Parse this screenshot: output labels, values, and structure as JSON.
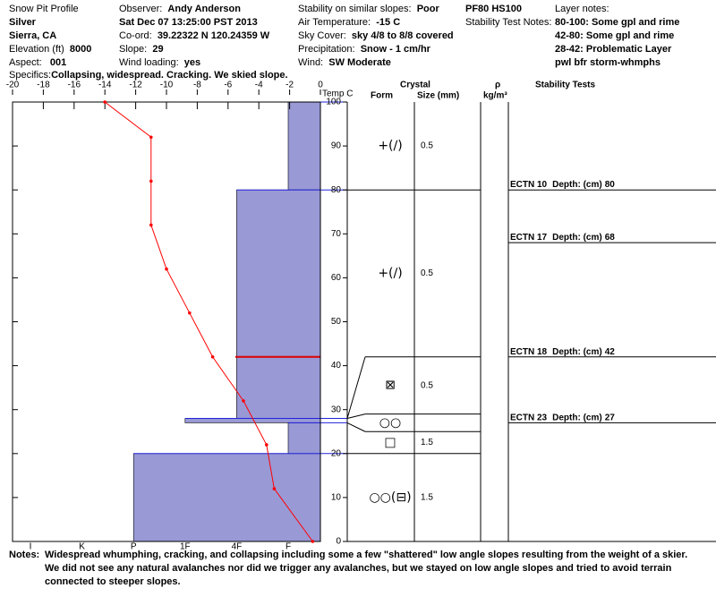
{
  "header": {
    "title": "Snow Pit Profile",
    "location": "Silver",
    "region": "Sierra, CA",
    "elevation": {
      "label": "Elevation (ft)",
      "value": 8000
    },
    "aspect": {
      "label": "Aspect:",
      "value": "001"
    },
    "observer": {
      "label": "Observer:",
      "value": "Andy Anderson"
    },
    "date": "Sat Dec 07 13:25:00 PST 2013",
    "coord": {
      "label": "Co-ord:",
      "value": "39.22322 N 120.24359 W"
    },
    "slope": {
      "label": "Slope:",
      "value": 29
    },
    "wind_loading": {
      "label": "Wind loading:",
      "value": "yes"
    },
    "stability": {
      "label": "Stability on similar slopes:",
      "value": "Poor"
    },
    "air_temp": {
      "label": "Air Temperature:",
      "value": "-15 C"
    },
    "sky": {
      "label": "Sky Cover:",
      "value": "sky 4/8 to 8/8 covered"
    },
    "precip": {
      "label": "Precipitation:",
      "value": "Snow - 1 cm/hr"
    },
    "wind": {
      "label": "Wind:",
      "value": "SW Moderate"
    },
    "pf": "PF80 HS100",
    "stability_test_notes": "Stability Test Notes:",
    "layer_notes_label": "Layer notes:",
    "layer_notes": [
      "80-100: Some gpl and rime",
      "42-80: Some gpl and rime",
      "28-42: Problematic Layer",
      "pwl bfr storm-whmphs"
    ],
    "specifics": {
      "label": "Specifics:",
      "value": "Collapsing, widespread. Cracking. We skied slope."
    }
  },
  "chart_data": {
    "type": "line",
    "x_label": "Temp C",
    "xlim": [
      -20,
      0
    ],
    "xticks": [
      -20,
      -18,
      -16,
      -14,
      -12,
      -10,
      -8,
      -6,
      -4,
      -2,
      0
    ],
    "ylim": [
      0,
      100
    ],
    "yticks": [
      0,
      10,
      20,
      30,
      40,
      50,
      60,
      70,
      80,
      90,
      100
    ],
    "temperature": {
      "color": "#ff0000",
      "depth": [
        100,
        92,
        82,
        72,
        62,
        52,
        42,
        32,
        22,
        12,
        0
      ],
      "values": [
        -14,
        -11,
        -11,
        -11,
        -10,
        -8.5,
        -7,
        -5,
        -3.5,
        -3,
        -0.5
      ]
    },
    "hardness_categories": [
      "I",
      "K",
      "P",
      "1F",
      "4F",
      "F"
    ],
    "hardness_color": "#9999d6",
    "layers": [
      {
        "top": 100,
        "bottom": 80,
        "hardness": "F"
      },
      {
        "top": 80,
        "bottom": 28,
        "hardness": "4F"
      },
      {
        "top": 28,
        "bottom": 27,
        "hardness": "1F"
      },
      {
        "top": 27,
        "bottom": 20,
        "hardness": "F"
      },
      {
        "top": 20,
        "bottom": 0,
        "hardness": "P"
      }
    ],
    "problem_layer_depth": 42
  },
  "columns": {
    "crystal": "Crystal",
    "form": "Form",
    "size": "Size (mm)",
    "rho": "ρ",
    "density": "kg/m³",
    "stability": "Stability Tests"
  },
  "crystals": [
    {
      "top": 100,
      "bottom": 80,
      "form": "+(∕)",
      "size": 0.5
    },
    {
      "top": 80,
      "bottom": 42,
      "form": "+(∕)",
      "size": 0.5
    },
    {
      "top": 42,
      "bottom": 29,
      "form": "⊠",
      "size": 0.5
    },
    {
      "top": 29,
      "bottom": 25,
      "form": "○○"
    },
    {
      "top": 25,
      "bottom": 20,
      "form": "□",
      "size": 1.5
    },
    {
      "top": 20,
      "bottom": 0,
      "form": "○○(⊟)",
      "size": 1.5
    }
  ],
  "depth_label": "Depth: (cm)",
  "stability_tests": [
    {
      "test": "ECTN 10",
      "depth": 80
    },
    {
      "test": "ECTN 17",
      "depth": 68
    },
    {
      "test": "ECTN 18",
      "depth": 42
    },
    {
      "test": "ECTN 23",
      "depth": 27
    }
  ],
  "notes": {
    "label": "Notes:",
    "text": "Widespread whumphing, cracking, and collapsing including some a few \"shattered\" low angle slopes resulting from the weight of a skier. We did not see any natural avalanches nor did we trigger any avalanches, but we stayed on low angle slopes and tried to avoid terrain connected to steeper slopes."
  }
}
